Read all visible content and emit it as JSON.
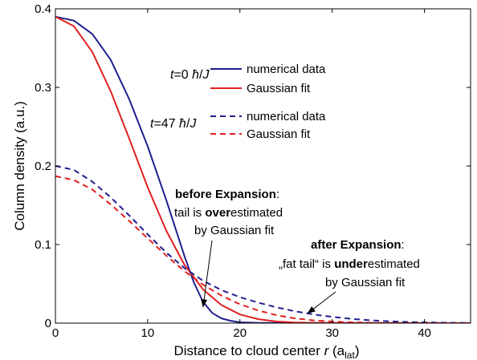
{
  "chart_data": {
    "type": "line",
    "xlabel_main": "Distance to cloud center ",
    "xlabel_var": "r",
    "xlabel_unit_open": " (a",
    "xlabel_unit_sub": "lat",
    "xlabel_unit_close": ")",
    "ylabel": "Column density (a.u.)",
    "xlim": [
      0,
      45
    ],
    "ylim": [
      0,
      0.4
    ],
    "xticks": [
      0,
      10,
      20,
      30,
      40
    ],
    "xtick_labels": [
      "0",
      "10",
      "20",
      "30",
      "40"
    ],
    "yticks": [
      0,
      0.1,
      0.2,
      0.3,
      0.4
    ],
    "ytick_labels": [
      "0",
      "0.1",
      "0.2",
      "0.3",
      "0.4"
    ],
    "grid": false,
    "legend_groups": [
      {
        "label_var": "t",
        "label_val": "=0 ",
        "label_hbar": "ħ",
        "label_slash": "/",
        "label_J": "J",
        "entries": [
          {
            "label": "numerical data",
            "color": "#1f1f8f",
            "style": "solid"
          },
          {
            "label": "Gaussian fit",
            "color": "#e02020",
            "style": "solid"
          }
        ]
      },
      {
        "label_var": "t",
        "label_val": "=47 ",
        "label_hbar": "ħ",
        "label_slash": "/",
        "label_J": "J",
        "entries": [
          {
            "label": "numerical data",
            "color": "#1f1f8f",
            "style": "dashed"
          },
          {
            "label": "Gaussian fit",
            "color": "#e02020",
            "style": "dashed"
          }
        ]
      }
    ],
    "series": [
      {
        "color": "#1f1f8f",
        "style": "solid",
        "x": [
          0,
          2,
          4,
          6,
          8,
          10,
          12,
          14,
          15,
          16,
          17,
          18,
          19,
          20,
          22,
          45
        ],
        "y": [
          0.39,
          0.385,
          0.368,
          0.335,
          0.285,
          0.225,
          0.157,
          0.085,
          0.052,
          0.027,
          0.013,
          0.006,
          0.003,
          0.001,
          0.0003,
          0.0
        ]
      },
      {
        "color": "#e02020",
        "style": "solid",
        "x": [
          0,
          2,
          4,
          6,
          8,
          10,
          12,
          14,
          16,
          18,
          20,
          22,
          24,
          26,
          28,
          30,
          45
        ],
        "y": [
          0.39,
          0.378,
          0.345,
          0.295,
          0.235,
          0.173,
          0.118,
          0.074,
          0.043,
          0.023,
          0.011,
          0.005,
          0.002,
          0.0008,
          0.0003,
          0.0001,
          0.0
        ]
      },
      {
        "color": "#1f1f8f",
        "style": "dashed",
        "x": [
          0,
          2,
          4,
          6,
          8,
          10,
          12,
          14,
          16,
          18,
          20,
          22,
          24,
          26,
          28,
          30,
          32,
          34,
          36,
          38,
          40,
          42,
          45
        ],
        "y": [
          0.2,
          0.195,
          0.18,
          0.16,
          0.137,
          0.113,
          0.09,
          0.07,
          0.054,
          0.042,
          0.033,
          0.026,
          0.02,
          0.015,
          0.011,
          0.008,
          0.0055,
          0.0037,
          0.0024,
          0.0015,
          0.0009,
          0.0005,
          0.0002
        ]
      },
      {
        "color": "#e02020",
        "style": "dashed",
        "x": [
          0,
          2,
          4,
          6,
          8,
          10,
          12,
          14,
          16,
          18,
          20,
          22,
          24,
          26,
          28,
          30,
          32,
          34,
          36,
          45
        ],
        "y": [
          0.187,
          0.182,
          0.17,
          0.151,
          0.13,
          0.108,
          0.086,
          0.066,
          0.049,
          0.035,
          0.024,
          0.016,
          0.01,
          0.006,
          0.0035,
          0.002,
          0.001,
          0.0005,
          0.0002,
          0.0
        ]
      }
    ],
    "annotations": [
      {
        "line1_bold": "before Expansion",
        "line1_rest": ":",
        "line2_pre": "tail is ",
        "line2_bold": "over",
        "line2_post": "estimated",
        "line3": "by Gaussian fit",
        "arrow_to": [
          16,
          0.02
        ]
      },
      {
        "line1_bold": "after Expansion",
        "line1_rest": ":",
        "line2_pre": "„fat tail“ is ",
        "line2_bold": "under",
        "line2_post": "estimated",
        "line3": "by Gaussian fit",
        "arrow_to": [
          27.3,
          0.012
        ]
      }
    ]
  }
}
